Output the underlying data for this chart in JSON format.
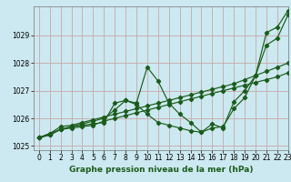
{
  "title": "",
  "xlabel": "Graphe pression niveau de la mer (hPa)",
  "ylabel": "",
  "bg_color": "#cce8f0",
  "grid_color": "#c8a8a8",
  "line_color": "#1a5c1a",
  "xlim": [
    -0.5,
    23
  ],
  "ylim": [
    1024.85,
    1030.05
  ],
  "yticks": [
    1025,
    1026,
    1027,
    1028,
    1029
  ],
  "xticks": [
    0,
    1,
    2,
    3,
    4,
    5,
    6,
    7,
    8,
    9,
    10,
    11,
    12,
    13,
    14,
    15,
    16,
    17,
    18,
    19,
    20,
    21,
    22,
    23
  ],
  "series": [
    [
      1025.3,
      1025.4,
      1025.6,
      1025.7,
      1025.75,
      1025.8,
      1025.85,
      1026.55,
      1026.65,
      1026.55,
      1027.85,
      1027.35,
      1026.55,
      1026.15,
      1025.85,
      1025.5,
      1025.65,
      1025.7,
      1026.35,
      1026.75,
      1027.55,
      1029.1,
      1029.3,
      1029.9
    ],
    [
      1025.3,
      1025.4,
      1025.6,
      1025.65,
      1025.7,
      1025.75,
      1025.9,
      1026.0,
      1026.1,
      1026.2,
      1026.3,
      1026.4,
      1026.5,
      1026.6,
      1026.7,
      1026.8,
      1026.9,
      1027.0,
      1027.1,
      1027.2,
      1027.3,
      1027.4,
      1027.5,
      1027.65
    ],
    [
      1025.3,
      1025.45,
      1025.7,
      1025.75,
      1025.85,
      1025.95,
      1026.05,
      1026.15,
      1026.25,
      1026.35,
      1026.45,
      1026.55,
      1026.65,
      1026.75,
      1026.85,
      1026.95,
      1027.05,
      1027.15,
      1027.25,
      1027.4,
      1027.55,
      1027.7,
      1027.85,
      1028.0
    ],
    [
      1025.3,
      1025.45,
      1025.6,
      1025.7,
      1025.8,
      1025.9,
      1026.0,
      1026.3,
      1026.65,
      1026.5,
      1026.15,
      1025.85,
      1025.75,
      1025.65,
      1025.55,
      1025.5,
      1025.8,
      1025.65,
      1026.6,
      1027.0,
      1027.55,
      1028.65,
      1028.9,
      1029.75
    ]
  ],
  "tick_fontsize": 5.5,
  "xlabel_fontsize": 6.5,
  "xlabel_fontweight": "bold",
  "marker_size": 2.2,
  "line_width": 0.85
}
